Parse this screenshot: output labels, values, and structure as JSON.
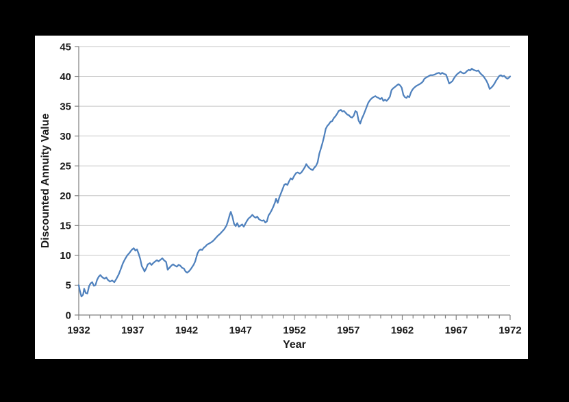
{
  "colors": {
    "page_background": "#000000",
    "plot_background": "#FFFFFF",
    "line": "#4F81BD",
    "gridline": "#C6C6C6",
    "axis": "#808080",
    "text": "#1A1A1A"
  },
  "chart_data": {
    "type": "line",
    "title": "",
    "xlabel": "Year",
    "ylabel": "Discounted Annuity Value",
    "xlim": [
      1932,
      1972
    ],
    "ylim": [
      0,
      45
    ],
    "x_ticks": [
      1932,
      1937,
      1942,
      1947,
      1952,
      1957,
      1962,
      1967,
      1972
    ],
    "x_minor_tick_interval": 1,
    "y_ticks": [
      0,
      5,
      10,
      15,
      20,
      25,
      30,
      35,
      40,
      45
    ],
    "grid": "horizontal",
    "legend": false,
    "series": [
      {
        "name": "Discounted Annuity Value",
        "color": "#4F81BD",
        "points": [
          [
            1932.0,
            5.0
          ],
          [
            1932.1,
            4.1
          ],
          [
            1932.25,
            3.1
          ],
          [
            1932.4,
            3.4
          ],
          [
            1932.5,
            4.4
          ],
          [
            1932.65,
            3.7
          ],
          [
            1932.8,
            3.6
          ],
          [
            1932.95,
            4.8
          ],
          [
            1933.1,
            5.3
          ],
          [
            1933.25,
            5.5
          ],
          [
            1933.4,
            4.9
          ],
          [
            1933.55,
            5.0
          ],
          [
            1933.7,
            5.9
          ],
          [
            1933.85,
            6.4
          ],
          [
            1934.0,
            6.7
          ],
          [
            1934.2,
            6.3
          ],
          [
            1934.4,
            6.1
          ],
          [
            1934.55,
            6.3
          ],
          [
            1934.7,
            5.9
          ],
          [
            1934.9,
            5.6
          ],
          [
            1935.1,
            5.8
          ],
          [
            1935.3,
            5.5
          ],
          [
            1935.5,
            6.1
          ],
          [
            1935.7,
            6.8
          ],
          [
            1935.9,
            7.7
          ],
          [
            1936.1,
            8.7
          ],
          [
            1936.3,
            9.4
          ],
          [
            1936.5,
            10.0
          ],
          [
            1936.7,
            10.4
          ],
          [
            1936.9,
            10.9
          ],
          [
            1937.1,
            11.2
          ],
          [
            1937.25,
            10.8
          ],
          [
            1937.4,
            11.0
          ],
          [
            1937.55,
            10.3
          ],
          [
            1937.7,
            9.4
          ],
          [
            1937.85,
            8.2
          ],
          [
            1938.0,
            7.7
          ],
          [
            1938.1,
            7.3
          ],
          [
            1938.25,
            7.8
          ],
          [
            1938.4,
            8.5
          ],
          [
            1938.6,
            8.7
          ],
          [
            1938.75,
            8.4
          ],
          [
            1938.9,
            8.7
          ],
          [
            1939.1,
            9.0
          ],
          [
            1939.25,
            9.2
          ],
          [
            1939.4,
            9.0
          ],
          [
            1939.6,
            9.3
          ],
          [
            1939.75,
            9.5
          ],
          [
            1939.9,
            9.2
          ],
          [
            1940.1,
            8.9
          ],
          [
            1940.25,
            7.6
          ],
          [
            1940.4,
            7.9
          ],
          [
            1940.6,
            8.3
          ],
          [
            1940.75,
            8.5
          ],
          [
            1940.9,
            8.3
          ],
          [
            1941.1,
            8.1
          ],
          [
            1941.25,
            8.4
          ],
          [
            1941.4,
            8.3
          ],
          [
            1941.6,
            7.9
          ],
          [
            1941.75,
            7.8
          ],
          [
            1941.9,
            7.3
          ],
          [
            1942.05,
            7.1
          ],
          [
            1942.2,
            7.3
          ],
          [
            1942.35,
            7.6
          ],
          [
            1942.5,
            8.0
          ],
          [
            1942.65,
            8.4
          ],
          [
            1942.8,
            9.0
          ],
          [
            1943.0,
            10.3
          ],
          [
            1943.15,
            10.8
          ],
          [
            1943.3,
            11.0
          ],
          [
            1943.45,
            10.9
          ],
          [
            1943.6,
            11.3
          ],
          [
            1943.75,
            11.5
          ],
          [
            1943.9,
            11.8
          ],
          [
            1944.1,
            12.0
          ],
          [
            1944.3,
            12.2
          ],
          [
            1944.5,
            12.5
          ],
          [
            1944.7,
            12.9
          ],
          [
            1944.9,
            13.3
          ],
          [
            1945.1,
            13.6
          ],
          [
            1945.3,
            14.0
          ],
          [
            1945.5,
            14.4
          ],
          [
            1945.7,
            15.0
          ],
          [
            1945.85,
            15.8
          ],
          [
            1946.0,
            16.8
          ],
          [
            1946.1,
            17.3
          ],
          [
            1946.25,
            16.5
          ],
          [
            1946.4,
            15.3
          ],
          [
            1946.55,
            14.9
          ],
          [
            1946.7,
            15.4
          ],
          [
            1946.85,
            14.8
          ],
          [
            1947.0,
            15.0
          ],
          [
            1947.15,
            15.2
          ],
          [
            1947.3,
            14.8
          ],
          [
            1947.45,
            15.3
          ],
          [
            1947.6,
            15.8
          ],
          [
            1947.75,
            16.2
          ],
          [
            1947.9,
            16.4
          ],
          [
            1948.1,
            16.8
          ],
          [
            1948.25,
            16.5
          ],
          [
            1948.4,
            16.3
          ],
          [
            1948.55,
            16.5
          ],
          [
            1948.7,
            16.1
          ],
          [
            1948.85,
            15.9
          ],
          [
            1949.0,
            15.8
          ],
          [
            1949.15,
            15.9
          ],
          [
            1949.3,
            15.5
          ],
          [
            1949.45,
            15.7
          ],
          [
            1949.6,
            16.7
          ],
          [
            1949.75,
            17.1
          ],
          [
            1949.9,
            17.6
          ],
          [
            1950.05,
            18.2
          ],
          [
            1950.2,
            18.9
          ],
          [
            1950.3,
            19.5
          ],
          [
            1950.45,
            18.8
          ],
          [
            1950.6,
            19.7
          ],
          [
            1950.75,
            20.4
          ],
          [
            1950.9,
            21.1
          ],
          [
            1951.05,
            21.8
          ],
          [
            1951.2,
            22.0
          ],
          [
            1951.35,
            21.8
          ],
          [
            1951.5,
            22.4
          ],
          [
            1951.65,
            22.9
          ],
          [
            1951.8,
            22.7
          ],
          [
            1952.0,
            23.4
          ],
          [
            1952.15,
            23.8
          ],
          [
            1952.3,
            23.9
          ],
          [
            1952.5,
            23.7
          ],
          [
            1952.65,
            23.9
          ],
          [
            1952.8,
            24.3
          ],
          [
            1953.0,
            24.9
          ],
          [
            1953.1,
            25.3
          ],
          [
            1953.25,
            24.9
          ],
          [
            1953.4,
            24.6
          ],
          [
            1953.55,
            24.4
          ],
          [
            1953.7,
            24.3
          ],
          [
            1953.85,
            24.7
          ],
          [
            1954.0,
            25.0
          ],
          [
            1954.15,
            25.6
          ],
          [
            1954.3,
            27.0
          ],
          [
            1954.45,
            27.9
          ],
          [
            1954.6,
            28.8
          ],
          [
            1954.75,
            29.9
          ],
          [
            1954.9,
            31.2
          ],
          [
            1955.05,
            31.7
          ],
          [
            1955.2,
            32.0
          ],
          [
            1955.35,
            32.4
          ],
          [
            1955.5,
            32.5
          ],
          [
            1955.65,
            33.0
          ],
          [
            1955.8,
            33.3
          ],
          [
            1955.95,
            33.7
          ],
          [
            1956.1,
            34.2
          ],
          [
            1956.3,
            34.4
          ],
          [
            1956.45,
            34.1
          ],
          [
            1956.6,
            34.2
          ],
          [
            1956.75,
            33.9
          ],
          [
            1956.9,
            33.6
          ],
          [
            1957.05,
            33.5
          ],
          [
            1957.2,
            33.2
          ],
          [
            1957.35,
            33.1
          ],
          [
            1957.5,
            33.4
          ],
          [
            1957.65,
            34.2
          ],
          [
            1957.8,
            34.0
          ],
          [
            1957.95,
            32.6
          ],
          [
            1958.1,
            32.1
          ],
          [
            1958.25,
            32.9
          ],
          [
            1958.4,
            33.5
          ],
          [
            1958.55,
            34.2
          ],
          [
            1958.7,
            34.9
          ],
          [
            1958.85,
            35.6
          ],
          [
            1959.0,
            36.0
          ],
          [
            1959.15,
            36.3
          ],
          [
            1959.3,
            36.5
          ],
          [
            1959.5,
            36.7
          ],
          [
            1959.65,
            36.5
          ],
          [
            1959.8,
            36.4
          ],
          [
            1959.95,
            36.2
          ],
          [
            1960.1,
            36.4
          ],
          [
            1960.25,
            35.9
          ],
          [
            1960.4,
            36.1
          ],
          [
            1960.55,
            35.9
          ],
          [
            1960.7,
            36.2
          ],
          [
            1960.85,
            36.6
          ],
          [
            1961.0,
            37.7
          ],
          [
            1961.15,
            38.0
          ],
          [
            1961.3,
            38.2
          ],
          [
            1961.5,
            38.5
          ],
          [
            1961.65,
            38.7
          ],
          [
            1961.8,
            38.5
          ],
          [
            1961.95,
            38.1
          ],
          [
            1962.1,
            36.9
          ],
          [
            1962.25,
            36.5
          ],
          [
            1962.4,
            36.4
          ],
          [
            1962.5,
            36.7
          ],
          [
            1962.65,
            36.5
          ],
          [
            1962.8,
            37.3
          ],
          [
            1962.95,
            37.8
          ],
          [
            1963.1,
            38.1
          ],
          [
            1963.3,
            38.4
          ],
          [
            1963.5,
            38.6
          ],
          [
            1963.7,
            38.8
          ],
          [
            1963.9,
            39.1
          ],
          [
            1964.05,
            39.6
          ],
          [
            1964.2,
            39.8
          ],
          [
            1964.4,
            40.0
          ],
          [
            1964.6,
            40.2
          ],
          [
            1964.8,
            40.2
          ],
          [
            1965.0,
            40.3
          ],
          [
            1965.2,
            40.5
          ],
          [
            1965.4,
            40.6
          ],
          [
            1965.55,
            40.4
          ],
          [
            1965.7,
            40.6
          ],
          [
            1965.9,
            40.4
          ],
          [
            1966.05,
            40.3
          ],
          [
            1966.2,
            39.6
          ],
          [
            1966.35,
            38.8
          ],
          [
            1966.5,
            39.0
          ],
          [
            1966.65,
            39.2
          ],
          [
            1966.8,
            39.7
          ],
          [
            1966.95,
            40.1
          ],
          [
            1967.1,
            40.4
          ],
          [
            1967.25,
            40.6
          ],
          [
            1967.4,
            40.8
          ],
          [
            1967.55,
            40.6
          ],
          [
            1967.7,
            40.5
          ],
          [
            1967.85,
            40.6
          ],
          [
            1968.0,
            40.9
          ],
          [
            1968.15,
            41.1
          ],
          [
            1968.3,
            41.0
          ],
          [
            1968.45,
            41.3
          ],
          [
            1968.6,
            41.1
          ],
          [
            1968.75,
            41.0
          ],
          [
            1968.9,
            40.9
          ],
          [
            1969.05,
            41.0
          ],
          [
            1969.2,
            40.6
          ],
          [
            1969.35,
            40.3
          ],
          [
            1969.5,
            40.1
          ],
          [
            1969.65,
            39.7
          ],
          [
            1969.8,
            39.3
          ],
          [
            1969.95,
            38.7
          ],
          [
            1970.1,
            37.9
          ],
          [
            1970.25,
            38.1
          ],
          [
            1970.4,
            38.4
          ],
          [
            1970.55,
            38.8
          ],
          [
            1970.7,
            39.3
          ],
          [
            1970.85,
            39.7
          ],
          [
            1971.0,
            40.1
          ],
          [
            1971.15,
            40.2
          ],
          [
            1971.3,
            40.0
          ],
          [
            1971.45,
            40.1
          ],
          [
            1971.6,
            39.8
          ],
          [
            1971.75,
            39.6
          ],
          [
            1971.9,
            39.8
          ],
          [
            1972.0,
            40.0
          ]
        ]
      }
    ]
  }
}
